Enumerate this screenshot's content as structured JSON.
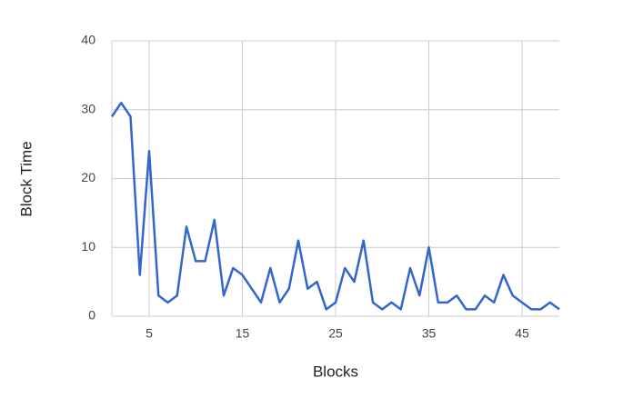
{
  "chart_data": {
    "type": "line",
    "x_label": "Blocks",
    "y_label": "Block Time",
    "x": [
      1,
      2,
      3,
      4,
      5,
      6,
      7,
      8,
      9,
      10,
      11,
      12,
      13,
      14,
      15,
      16,
      17,
      18,
      19,
      20,
      21,
      22,
      23,
      24,
      25,
      26,
      27,
      28,
      29,
      30,
      31,
      32,
      33,
      34,
      35,
      36,
      37,
      38,
      39,
      40,
      41,
      42,
      43,
      44,
      45,
      46,
      47,
      48,
      49
    ],
    "series": [
      {
        "name": "Block Time",
        "color": "#3366cc",
        "values": [
          29,
          31,
          29,
          6,
          24,
          3,
          2,
          3,
          13,
          8,
          8,
          14,
          3,
          7,
          6,
          4,
          2,
          7,
          2,
          4,
          11,
          4,
          5,
          1,
          2,
          7,
          5,
          11,
          2,
          1,
          2,
          1,
          7,
          3,
          10,
          2,
          2,
          3,
          1,
          1,
          3,
          2,
          6,
          3,
          2,
          1,
          1,
          2,
          1
        ]
      }
    ],
    "xlim": [
      1,
      49
    ],
    "xticks": [
      5,
      15,
      25,
      35,
      45
    ],
    "ylim": [
      0,
      40
    ],
    "yticks": [
      0,
      10,
      20,
      30,
      40
    ],
    "grid": true
  }
}
